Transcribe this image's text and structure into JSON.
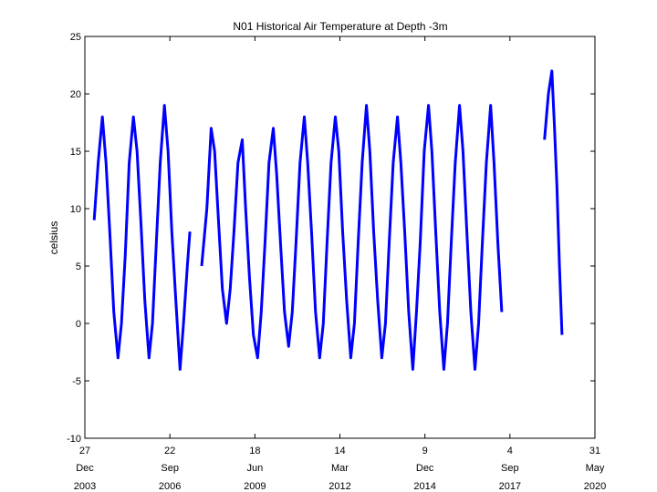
{
  "chart_data": {
    "type": "line",
    "title": "N01 Historical Air Temperature at Depth -3m",
    "xlabel": "",
    "ylabel": "celsius",
    "ylim": [
      -10,
      25
    ],
    "xlim": [
      "2003-12-27",
      "2020-05-31"
    ],
    "grid": false,
    "yticks": [
      -10,
      -5,
      0,
      5,
      10,
      15,
      20,
      25
    ],
    "xticks": [
      {
        "date": "2003-12-27",
        "day": "27",
        "month": "Dec",
        "year": "2003"
      },
      {
        "date": "2006-09-22",
        "day": "22",
        "month": "Sep",
        "year": "2006"
      },
      {
        "date": "2009-06-18",
        "day": "18",
        "month": "Jun",
        "year": "2009"
      },
      {
        "date": "2012-03-14",
        "day": "14",
        "month": "Mar",
        "year": "2012"
      },
      {
        "date": "2014-12-09",
        "day": "9",
        "month": "Dec",
        "year": "2014"
      },
      {
        "date": "2017-09-04",
        "day": "4",
        "month": "Sep",
        "year": "2017"
      },
      {
        "date": "2020-05-31",
        "day": "31",
        "month": "May",
        "year": "2020"
      }
    ],
    "series": [
      {
        "color": "#0000ff",
        "segments": [
          {
            "x": [
              "2004-04-15",
              "2004-06-01",
              "2004-07-20",
              "2004-09-01",
              "2004-10-15",
              "2004-12-01",
              "2005-01-20",
              "2005-03-01",
              "2005-04-15",
              "2005-06-01",
              "2005-07-20",
              "2005-09-01",
              "2005-10-15",
              "2005-12-01",
              "2006-01-20",
              "2006-03-01",
              "2006-04-15",
              "2006-06-01",
              "2006-07-20",
              "2006-09-01",
              "2006-10-15",
              "2006-12-01",
              "2007-01-20",
              "2007-03-01",
              "2007-04-15",
              "2007-05-15"
            ],
            "y": [
              9,
              14,
              18,
              14,
              8,
              1,
              -3,
              0,
              6,
              14,
              18,
              15,
              9,
              2,
              -3,
              0,
              7,
              14,
              19,
              15,
              8,
              2,
              -4,
              0,
              5,
              8
            ]
          },
          {
            "x": [
              "2007-10-01",
              "2007-12-01",
              "2008-01-20",
              "2008-03-01",
              "2008-04-15",
              "2008-06-01",
              "2008-07-20",
              "2008-09-01",
              "2008-10-15",
              "2008-12-01",
              "2009-01-20",
              "2009-03-01",
              "2009-04-15",
              "2009-06-01",
              "2009-07-20",
              "2009-09-01",
              "2009-10-15",
              "2009-12-01",
              "2010-01-20",
              "2010-03-01",
              "2010-04-15",
              "2010-06-01",
              "2010-07-20",
              "2010-09-01",
              "2010-10-15",
              "2010-12-01",
              "2011-01-20",
              "2011-03-01",
              "2011-04-15",
              "2011-06-01",
              "2011-07-20",
              "2011-09-01",
              "2011-10-15",
              "2011-12-01",
              "2012-01-20",
              "2012-03-01",
              "2012-04-15",
              "2012-06-01",
              "2012-07-20",
              "2012-09-01",
              "2012-10-15",
              "2012-12-01",
              "2013-01-20",
              "2013-03-01",
              "2013-04-15",
              "2013-06-01",
              "2013-07-20",
              "2013-09-01",
              "2013-10-15",
              "2013-12-01",
              "2014-01-20",
              "2014-03-01",
              "2014-04-15",
              "2014-06-01",
              "2014-07-20",
              "2014-09-01",
              "2014-10-15",
              "2014-12-01",
              "2015-01-20",
              "2015-03-01",
              "2015-04-15",
              "2015-06-01",
              "2015-07-20",
              "2015-09-01",
              "2015-10-15",
              "2015-12-01",
              "2016-01-20",
              "2016-03-01",
              "2016-04-15",
              "2016-06-01",
              "2016-07-20",
              "2016-09-01",
              "2016-10-15",
              "2016-12-01",
              "2017-01-20",
              "2017-03-01",
              "2017-04-15",
              "2017-05-31"
            ],
            "y": [
              5,
              10,
              17,
              15,
              9,
              3,
              0,
              3,
              8,
              14,
              16,
              10,
              4,
              -1,
              -3,
              1,
              7,
              14,
              17,
              13,
              7,
              1,
              -2,
              1,
              7,
              14,
              18,
              14,
              8,
              1,
              -3,
              0,
              7,
              14,
              18,
              15,
              8,
              2,
              -3,
              0,
              7,
              14,
              19,
              15,
              8,
              2,
              -3,
              0,
              7,
              14,
              18,
              14,
              8,
              1,
              -4,
              1,
              7,
              15,
              19,
              15,
              8,
              1,
              -4,
              0,
              7,
              14,
              19,
              15,
              8,
              1,
              -4,
              0,
              7,
              14,
              19,
              14,
              7,
              1
            ]
          },
          {
            "x": [
              "2018-10-15",
              "2018-12-01",
              "2019-01-10",
              "2019-02-10",
              "2019-03-10",
              "2019-04-10",
              "2019-05-10"
            ],
            "y": [
              16,
              20,
              22,
              17,
              12,
              5,
              -1
            ]
          }
        ]
      }
    ]
  }
}
